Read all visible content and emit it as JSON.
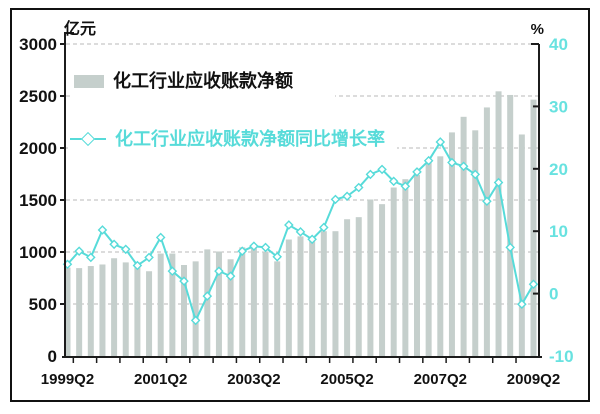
{
  "header": {
    "left_unit": "亿元",
    "right_unit": "%"
  },
  "legend": [
    {
      "label": "化工行业应收账款净额",
      "type": "bar"
    },
    {
      "label": "化工行业应收账款净额同比增长率",
      "type": "line"
    }
  ],
  "chart_data": {
    "type": "bar+line combo, dual axis",
    "categories": [
      "1999Q2",
      "1999Q3",
      "1999Q4",
      "2000Q1",
      "2000Q2",
      "2000Q3",
      "2000Q4",
      "2001Q1",
      "2001Q2",
      "2001Q3",
      "2001Q4",
      "2002Q1",
      "2002Q2",
      "2002Q3",
      "2002Q4",
      "2003Q1",
      "2003Q2",
      "2003Q3",
      "2003Q4",
      "2004Q1",
      "2004Q2",
      "2004Q3",
      "2004Q4",
      "2005Q1",
      "2005Q2",
      "2005Q3",
      "2005Q4",
      "2006Q1",
      "2006Q2",
      "2006Q3",
      "2006Q4",
      "2007Q1",
      "2007Q2",
      "2007Q3",
      "2007Q4",
      "2008Q1",
      "2008Q2",
      "2008Q3",
      "2008Q4",
      "2009Q1",
      "2009Q2"
    ],
    "series": [
      {
        "name": "化工行业应收账款净额",
        "type": "bar",
        "axis": "left",
        "unit": "亿元",
        "values": [
          850,
          845,
          865,
          880,
          940,
          900,
          900,
          815,
          985,
          985,
          875,
          910,
          1025,
          1005,
          930,
          1045,
          1045,
          1005,
          910,
          1120,
          1150,
          1125,
          1200,
          1200,
          1315,
          1335,
          1505,
          1460,
          1620,
          1700,
          1740,
          1860,
          1920,
          2150,
          2300,
          2170,
          2390,
          2545,
          2510,
          2130,
          2465
        ]
      },
      {
        "name": "化工行业应收账款净额同比增长率",
        "type": "line",
        "axis": "right",
        "unit": "%",
        "values": [
          4.7,
          6.8,
          5.8,
          10.2,
          7.9,
          7.1,
          4.5,
          5.8,
          9.0,
          3.6,
          2.0,
          -4.3,
          -0.4,
          3.6,
          2.8,
          6.8,
          7.6,
          7.4,
          5.9,
          11.0,
          9.9,
          8.7,
          10.6,
          15.1,
          15.6,
          17.0,
          19.1,
          19.9,
          18.0,
          17.2,
          19.5,
          21.3,
          24.3,
          21.0,
          20.4,
          19.1,
          14.8,
          17.8,
          7.4,
          -1.7,
          1.5
        ]
      }
    ],
    "left_axis": {
      "label": "亿元",
      "min": 0,
      "max": 3000,
      "step": 500,
      "ticks": [
        0,
        500,
        1000,
        1500,
        2000,
        2500,
        3000
      ]
    },
    "right_axis": {
      "label": "%",
      "min": -10,
      "max": 40,
      "step": 10,
      "ticks": [
        40,
        30,
        20,
        10,
        0,
        -10
      ]
    },
    "x_tick_labels": [
      "1999Q2",
      "2001Q2",
      "2003Q2",
      "2005Q2",
      "2007Q2",
      "2009Q2"
    ],
    "x_label_every": 8,
    "grid": "horizontal dashed lines at every 500 of left axis",
    "legend_position": "top-left inside plot",
    "colors": {
      "bar": "#c5cfcc",
      "line": "#57dbd9",
      "marker_fill": "#ffffff",
      "right_axis_text": "#68e2e0",
      "left_axis_text": "#111111",
      "grid": "#b8b8b8",
      "axis": "#1c1c1c",
      "background": "#ffffff"
    }
  }
}
